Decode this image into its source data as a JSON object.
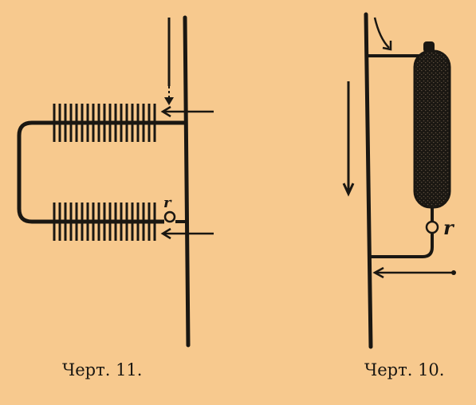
{
  "figure_11": {
    "caption": "Черт. 11.",
    "tap_label": "r"
  },
  "figure_10": {
    "caption": "Черт. 10.",
    "tap_label": "r"
  },
  "colors": {
    "paper": "#f7c98e",
    "ink": "#1a1712"
  }
}
